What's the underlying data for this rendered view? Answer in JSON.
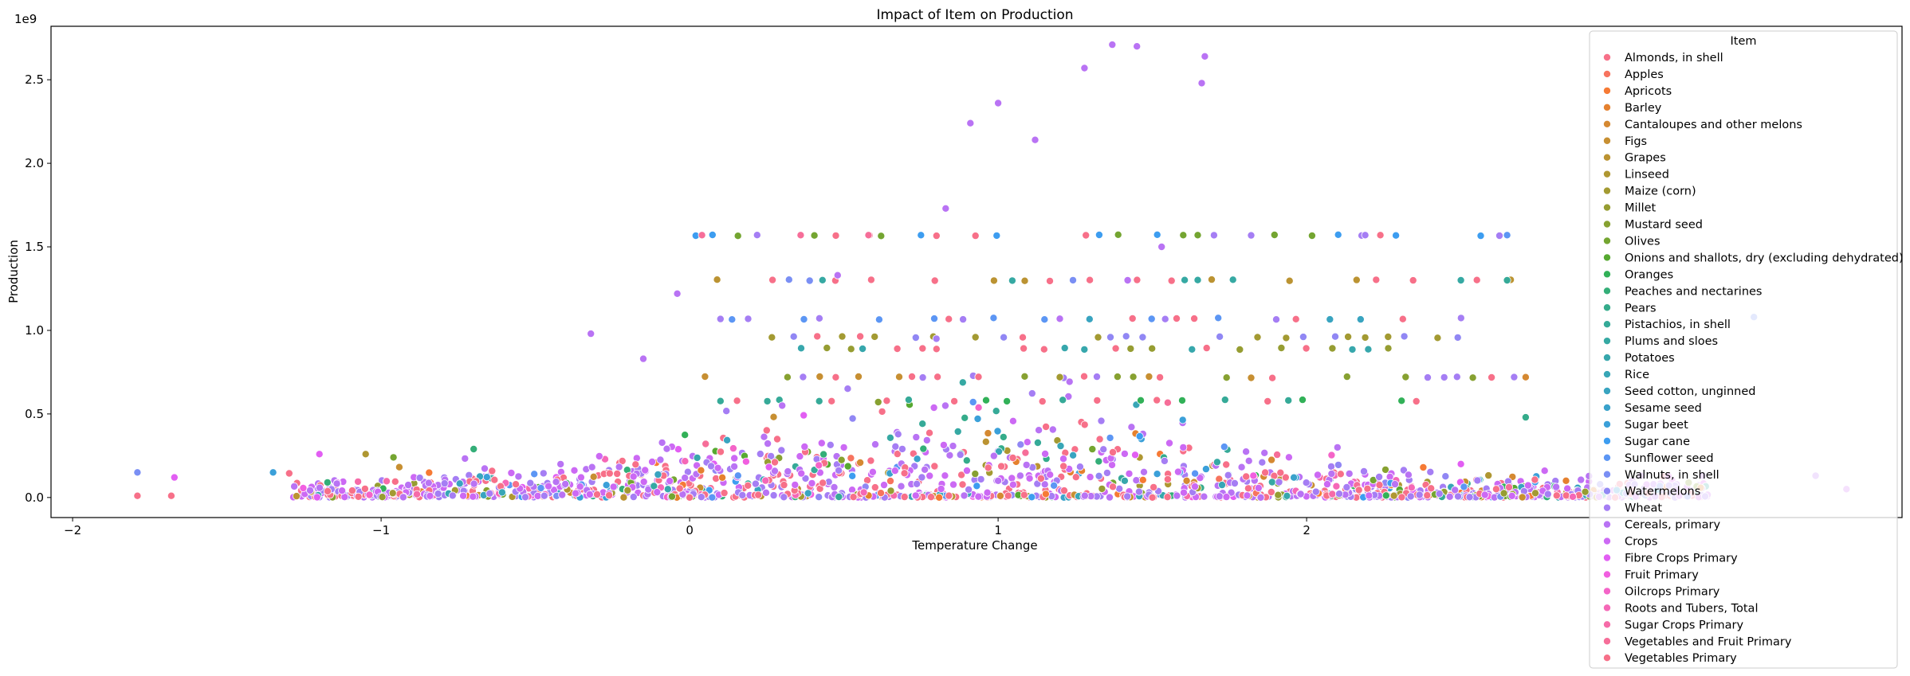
{
  "chart_data": {
    "type": "scatter",
    "title": "Impact of Item on Production",
    "xlabel": "Temperature Change",
    "ylabel": "Production",
    "y_offset_label": "1e9",
    "xlim": [
      -2.07,
      3.93
    ],
    "ylim": [
      -0.12,
      2.82
    ],
    "x_ticks": [
      -2,
      -1,
      0,
      1,
      2
    ],
    "x_tick_labels": [
      "−2",
      "−1",
      "0",
      "1",
      "2"
    ],
    "y_ticks": [
      0.0,
      0.5,
      1.0,
      1.5,
      2.0,
      2.5
    ],
    "y_tick_labels": [
      "0.0",
      "0.5",
      "1.0",
      "1.5",
      "2.0",
      "2.5"
    ],
    "grid": false,
    "legend": {
      "title": "Item",
      "placement": "upper right",
      "entries": [
        {
          "name": "Almonds, in shell",
          "color": "#f77189"
        },
        {
          "name": "Apples",
          "color": "#f7745f"
        },
        {
          "name": "Apricots",
          "color": "#f67a35"
        },
        {
          "name": "Barley",
          "color": "#e5812f"
        },
        {
          "name": "Cantaloupes and other melons",
          "color": "#d58932"
        },
        {
          "name": "Figs",
          "color": "#c78f32"
        },
        {
          "name": "Grapes",
          "color": "#bb9332"
        },
        {
          "name": "Linseed",
          "color": "#af9732"
        },
        {
          "name": "Maize (corn)",
          "color": "#a39a32"
        },
        {
          "name": "Millet",
          "color": "#969d32"
        },
        {
          "name": "Mustard seed",
          "color": "#87a131"
        },
        {
          "name": "Olives",
          "color": "#74a531"
        },
        {
          "name": "Onions and shallots, dry (excluding dehydrated)",
          "color": "#56a931"
        },
        {
          "name": "Oranges",
          "color": "#32b158"
        },
        {
          "name": "Peaches and nectarines",
          "color": "#34ae78"
        },
        {
          "name": "Pears",
          "color": "#35ac8b"
        },
        {
          "name": "Pistachios, in shell",
          "color": "#36aa98"
        },
        {
          "name": "Plums and sloes",
          "color": "#36a9a3"
        },
        {
          "name": "Potatoes",
          "color": "#37a7ac"
        },
        {
          "name": "Rice",
          "color": "#38a6b6"
        },
        {
          "name": "Seed cotton, unginned",
          "color": "#39a4c0"
        },
        {
          "name": "Sesame seed",
          "color": "#3aa2cb"
        },
        {
          "name": "Sugar beet",
          "color": "#3ba0d9"
        },
        {
          "name": "Sugar cane",
          "color": "#3d9df0"
        },
        {
          "name": "Sunflower seed",
          "color": "#5c96f4"
        },
        {
          "name": "Walnuts, in shell",
          "color": "#7a8ff4"
        },
        {
          "name": "Watermelons",
          "color": "#9187f4"
        },
        {
          "name": "Wheat",
          "color": "#a57ef4"
        },
        {
          "name": "Cereals, primary",
          "color": "#b973f4"
        },
        {
          "name": "Crops",
          "color": "#cc69f4"
        },
        {
          "name": "Fibre Crops Primary",
          "color": "#e25ef3"
        },
        {
          "name": "Fruit Primary",
          "color": "#f15fe0"
        },
        {
          "name": "Oilcrops Primary",
          "color": "#f464c8"
        },
        {
          "name": "Roots and Tubers, Total",
          "color": "#f568b7"
        },
        {
          "name": "Sugar Crops Primary",
          "color": "#f66ba8"
        },
        {
          "name": "Vegetables and Fruit Primary",
          "color": "#f66e99"
        },
        {
          "name": "Vegetables Primary",
          "color": "#f77089"
        }
      ]
    },
    "point_sample": [
      {
        "x": -1.79,
        "y": 0.01,
        "item": "Vegetables Primary"
      },
      {
        "x": -1.79,
        "y": 0.15,
        "item": "Walnuts, in shell"
      },
      {
        "x": -1.68,
        "y": 0.01,
        "item": "Vegetables Primary"
      },
      {
        "x": -1.67,
        "y": 0.12,
        "item": "Fibre Crops Primary"
      },
      {
        "x": -1.35,
        "y": 0.15,
        "item": "Sugar beet"
      },
      {
        "x": -1.2,
        "y": 0.26,
        "item": "Fibre Crops Primary"
      },
      {
        "x": -1.05,
        "y": 0.26,
        "item": "Linseed"
      },
      {
        "x": -0.96,
        "y": 0.24,
        "item": "Olives"
      },
      {
        "x": -0.7,
        "y": 0.29,
        "item": "Peaches and nectarines"
      },
      {
        "x": -0.32,
        "y": 0.98,
        "item": "Cereals, primary"
      },
      {
        "x": -0.15,
        "y": 0.83,
        "item": "Cereals, primary"
      },
      {
        "x": -0.04,
        "y": 1.22,
        "item": "Cereals, primary"
      },
      {
        "x": 0.04,
        "y": 1.57,
        "item": "Vegetables and Fruit Primary"
      },
      {
        "x": 0.36,
        "y": 1.57,
        "item": "Vegetables and Fruit Primary"
      },
      {
        "x": 0.48,
        "y": 1.33,
        "item": "Cereals, primary"
      },
      {
        "x": 0.58,
        "y": 1.57,
        "item": "Vegetables and Fruit Primary"
      },
      {
        "x": 0.75,
        "y": 1.57,
        "item": "Sugar cane"
      },
      {
        "x": 0.83,
        "y": 1.73,
        "item": "Cereals, primary"
      },
      {
        "x": 0.91,
        "y": 2.24,
        "item": "Cereals, primary"
      },
      {
        "x": 1.0,
        "y": 2.36,
        "item": "Cereals, primary"
      },
      {
        "x": 1.12,
        "y": 2.14,
        "item": "Cereals, primary"
      },
      {
        "x": 1.28,
        "y": 2.57,
        "item": "Cereals, primary"
      },
      {
        "x": 1.37,
        "y": 2.71,
        "item": "Cereals, primary"
      },
      {
        "x": 1.45,
        "y": 2.7,
        "item": "Cereals, primary"
      },
      {
        "x": 1.67,
        "y": 2.64,
        "item": "Cereals, primary"
      },
      {
        "x": 1.66,
        "y": 2.48,
        "item": "Cereals, primary"
      },
      {
        "x": 1.6,
        "y": 1.57,
        "item": "Olives"
      },
      {
        "x": 2.19,
        "y": 1.57,
        "item": "Wheat"
      },
      {
        "x": 2.65,
        "y": 1.57,
        "item": "Sunflower seed"
      },
      {
        "x": 2.5,
        "y": 1.3,
        "item": "Plums and sloes"
      },
      {
        "x": 2.65,
        "y": 1.3,
        "item": "Pistachios, in shell"
      },
      {
        "x": 2.71,
        "y": 0.72,
        "item": "Cantaloupes and other melons"
      },
      {
        "x": 2.71,
        "y": 0.48,
        "item": "Pears"
      },
      {
        "x": 3.45,
        "y": 1.08,
        "item": "Walnuts, in shell"
      },
      {
        "x": 3.65,
        "y": 0.13,
        "item": "Cereals, primary"
      },
      {
        "x": 3.75,
        "y": 0.05,
        "item": "Crops"
      },
      {
        "x": 1.53,
        "y": 1.5,
        "item": "Cereals, primary"
      },
      {
        "x": 1.42,
        "y": 1.3,
        "item": "Cereals, primary"
      },
      {
        "x": 1.2,
        "y": 1.07,
        "item": "Cereals, primary"
      },
      {
        "x": 0.8,
        "y": 0.95,
        "item": "Wheat"
      },
      {
        "x": 1.2,
        "y": 0.72,
        "item": "Maize (corn)"
      },
      {
        "x": 0.3,
        "y": 0.55,
        "item": "Cereals, primary"
      },
      {
        "x": 0.5,
        "y": 0.3,
        "item": "Crops"
      },
      {
        "x": 1.0,
        "y": 0.1,
        "item": "Cereals, primary"
      },
      {
        "x": 1.6,
        "y": 0.3,
        "item": "Crops"
      },
      {
        "x": 2.1,
        "y": 0.3,
        "item": "Cereals, primary"
      },
      {
        "x": 2.5,
        "y": 0.2,
        "item": "Fibre Crops Primary"
      },
      {
        "x": 0.0,
        "y": 0.0,
        "item": "Vegetables Primary"
      },
      {
        "x": 1.5,
        "y": 0.0,
        "item": "Vegetables Primary"
      },
      {
        "x": 3.0,
        "y": 0.0,
        "item": "Vegetables Primary"
      }
    ]
  }
}
